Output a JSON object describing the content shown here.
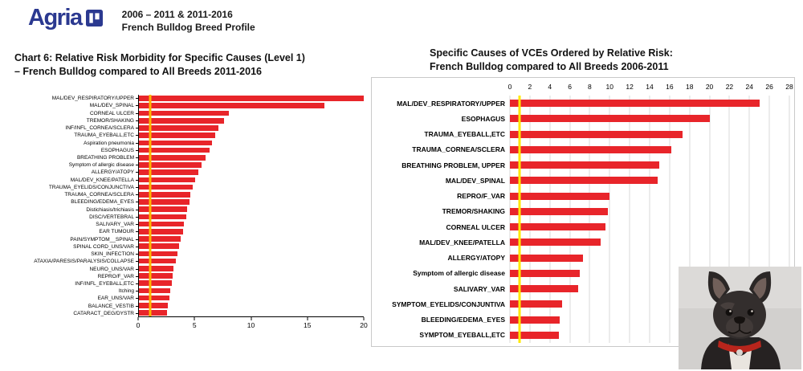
{
  "header": {
    "brand": "Agria",
    "line1": "2006 – 2011 & 2011-2016",
    "line2": "French Bulldog Breed Profile"
  },
  "colors": {
    "bar_red": "#e8252a",
    "refline_left": "#ffb400",
    "refline_right": "#ffe800",
    "brand_blue": "#2b3990",
    "gridline_gray": "#d9d9d9"
  },
  "images": {
    "dog_photo": "french-bulldog"
  },
  "chart_data": [
    {
      "type": "bar",
      "orientation": "horizontal",
      "title_line1": "Chart 6: Relative Risk Morbidity for Specific Causes (Level 1)",
      "title_line2": "–  French Bulldog compared to All Breeds 2011-2016",
      "xlabel": "",
      "ylabel": "",
      "xlim": [
        0,
        20
      ],
      "xticks": [
        0,
        5,
        10,
        15,
        20
      ],
      "reference_line": 1,
      "grid": false,
      "axis_position": "bottom",
      "legend": "none",
      "bar_color": "#e8252a",
      "refline_color": "#ffb400",
      "categories": [
        "MAL/DEV_RESPIRATORY/UPPER",
        "MAL/DEV_SPINAL",
        "CORNEAL ULCER",
        "TREMOR/SHAKING",
        "INF/INFL_CORNEA/SCLERA",
        "TRAUMA_EYEBALL,ETC",
        "Aspiration pneumonia",
        "ESOPHAGUS",
        "BREATHING PROBLEM",
        "Symptom of allergic disease",
        "ALLERGY/ATOPY",
        "MAL/DEV_KNEE/PATELLA",
        "TRAUMA_EYELIDS/CONJUNCTIVA",
        "TRAUMA_CORNEA/SCLERA",
        "BLEEDING/EDEMA_EYES",
        "Distichiasis/trichiasis",
        "DISC/VERTEBRAL",
        "SALIVARY_VAR",
        "EAR TUMOUR",
        "PAIN/SYMPTOM__SPINAL",
        "SPINAL CORD_UNS/VAR",
        "SKIN_INFECTION",
        "ATAXIA/PARESIS/PARALYSIS/COLLAPSE",
        "NEURO_UNS/VAR",
        "REPRO/F_VAR",
        "INF/INFL_EYEBALL,ETC",
        "Itching",
        "EAR_UNS/VAR",
        "BALANCE_VESTIB",
        "CATARACT_DEG/DYSTR"
      ],
      "values": [
        20,
        16.5,
        8,
        7.6,
        7.1,
        6.8,
        6.5,
        6.3,
        5.9,
        5.6,
        5.3,
        5.0,
        4.8,
        4.6,
        4.5,
        4.3,
        4.2,
        4.0,
        3.9,
        3.7,
        3.6,
        3.4,
        3.3,
        3.1,
        3.0,
        2.9,
        2.8,
        2.7,
        2.6,
        2.5
      ]
    },
    {
      "type": "bar",
      "orientation": "horizontal",
      "title_line1": "Specific Causes of VCEs Ordered by Relative Risk:",
      "title_line2": "French Bulldog compared to All Breeds 2006-2011",
      "xlabel": "",
      "ylabel": "",
      "xlim": [
        0,
        28
      ],
      "xticks": [
        0,
        2,
        4,
        6,
        8,
        10,
        12,
        14,
        16,
        18,
        20,
        22,
        24,
        26,
        28
      ],
      "reference_line": 1,
      "grid": true,
      "axis_position": "top",
      "legend": "none",
      "bar_color": "#e8252a",
      "refline_color": "#ffe800",
      "categories": [
        "MAL/DEV_RESPIRATORY/UPPER",
        "ESOPHAGUS",
        "TRAUMA_EYEBALL,ETC",
        "TRAUMA_CORNEA/SCLERA",
        "BREATHING PROBLEM, UPPER",
        "MAL/DEV_SPINAL",
        "REPRO/F_VAR",
        "TREMOR/SHAKING",
        "CORNEAL ULCER",
        "MAL/DEV_KNEE/PATELLA",
        "ALLERGY/ATOPY",
        "Symptom of allergic disease",
        "SALIVARY_VAR",
        "SYMPTOM_EYELIDS/CONJUNTIVA",
        "BLEEDING/EDEMA_EYES",
        "SYMPTOM_EYEBALL,ETC"
      ],
      "values": [
        25,
        20,
        17.3,
        16.2,
        15,
        14.8,
        10,
        9.8,
        9.6,
        9.1,
        7.3,
        7,
        6.8,
        5.2,
        5,
        4.9
      ]
    }
  ]
}
